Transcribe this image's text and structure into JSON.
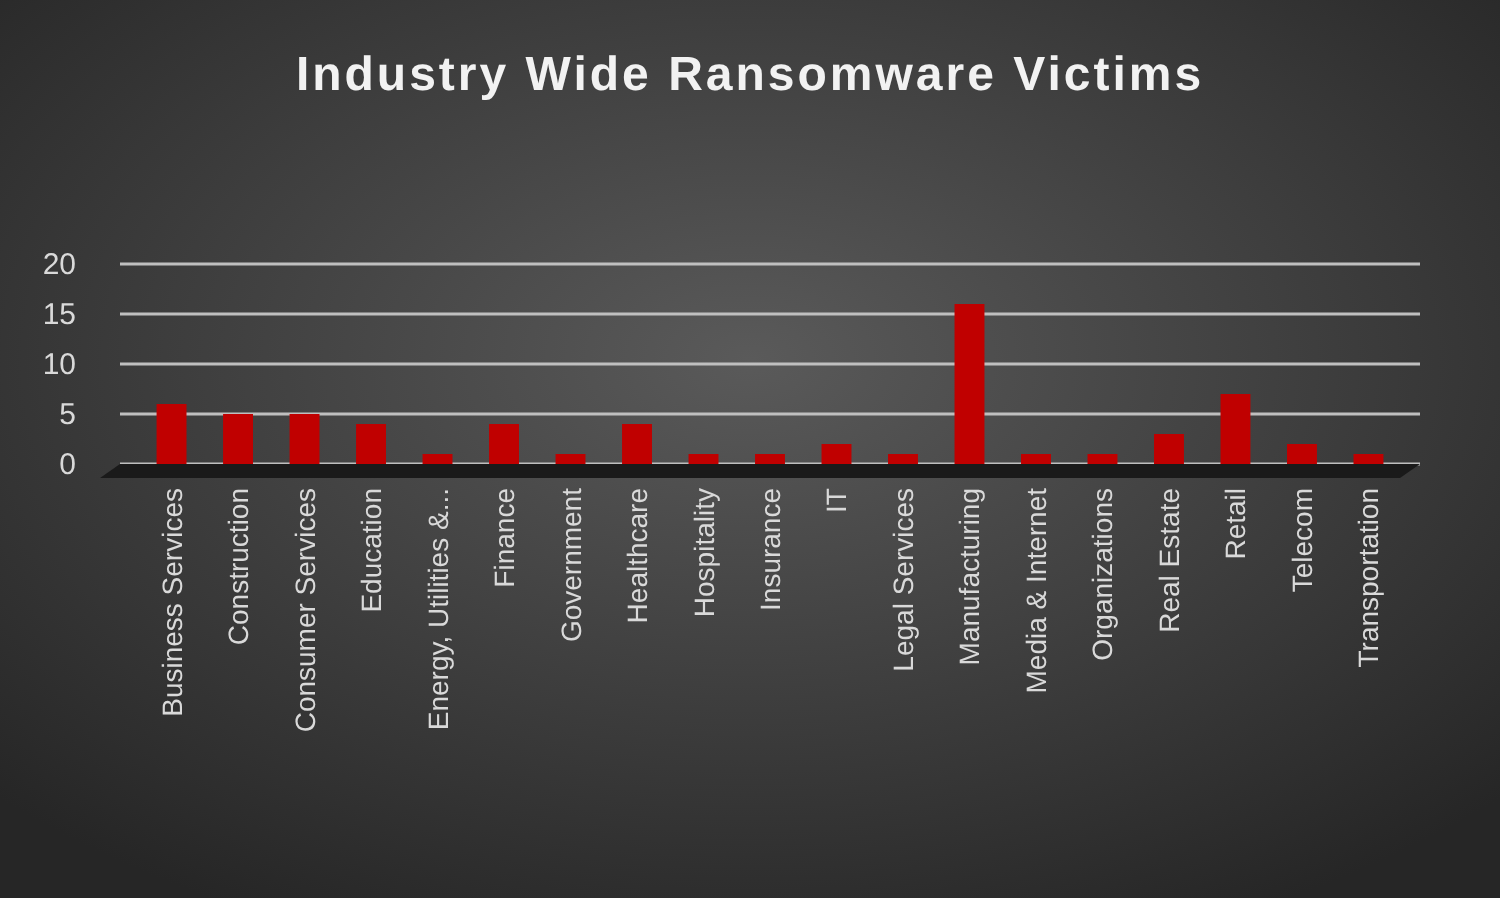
{
  "chart_data": {
    "type": "bar",
    "title": "Industry Wide Ransomware Victims",
    "categories": [
      "Business Services",
      "Construction",
      "Consumer Services",
      "Education",
      "Energy, Utilities &...",
      "Finance",
      "Government",
      "Healthcare",
      "Hospitality",
      "Insurance",
      "IT",
      "Legal Services",
      "Manufacturing",
      "Media & Internet",
      "Organizations",
      "Real Estate",
      "Retail",
      "Telecom",
      "Transportation"
    ],
    "values": [
      6,
      5,
      5,
      4,
      1,
      4,
      1,
      4,
      1,
      1,
      2,
      1,
      16,
      1,
      1,
      3,
      7,
      2,
      1
    ],
    "color": "#c00000",
    "ylim": [
      0,
      20
    ],
    "yticks": [
      0,
      5,
      10,
      15,
      20
    ],
    "grid": "y"
  }
}
